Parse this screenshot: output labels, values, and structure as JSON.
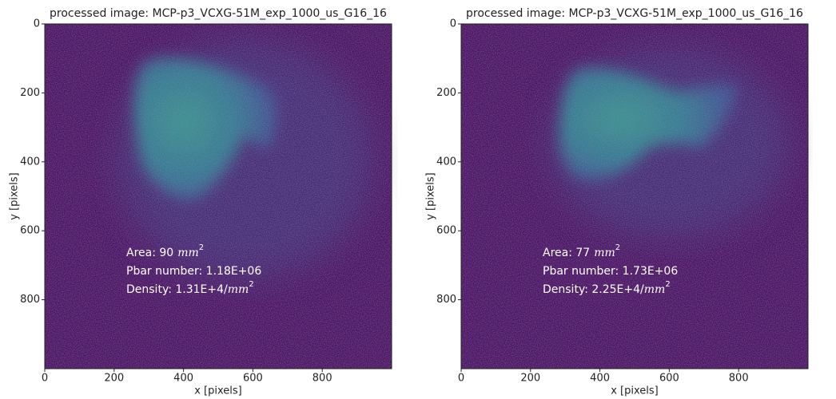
{
  "chart_data": [
    {
      "type": "image",
      "title": "processed image: MCP-p3_VCXG-51M_exp_1000_us_G16_16",
      "xlabel": "x [pixels]",
      "ylabel": "y [pixels]",
      "xlim": [
        0,
        1000
      ],
      "ylim": [
        1000,
        0
      ],
      "xticks": [
        0,
        200,
        400,
        600,
        800
      ],
      "yticks": [
        0,
        200,
        400,
        600,
        800
      ],
      "annotations": [
        {
          "prefix": "Area: 90",
          "unit": "mm",
          "power": "2"
        },
        {
          "prefix": "Pbar number: 1.18E+06"
        },
        {
          "prefix": "Density: 1.31E+4/",
          "unit": "mm",
          "power": "2"
        }
      ]
    },
    {
      "type": "image",
      "title": "processed image: MCP-p3_VCXG-51M_exp_1000_us_G16_16",
      "xlabel": "x [pixels]",
      "ylabel": "y [pixels]",
      "xlim": [
        0,
        1000
      ],
      "ylim": [
        1000,
        0
      ],
      "xticks": [
        0,
        200,
        400,
        600,
        800
      ],
      "yticks": [
        0,
        200,
        400,
        600,
        800
      ],
      "annotations": [
        {
          "prefix": "Area: 77",
          "unit": "mm",
          "power": "2"
        },
        {
          "prefix": "Pbar number: 1.73E+06"
        },
        {
          "prefix": "Density: 2.25E+4/",
          "unit": "mm",
          "power": "2"
        }
      ]
    }
  ]
}
